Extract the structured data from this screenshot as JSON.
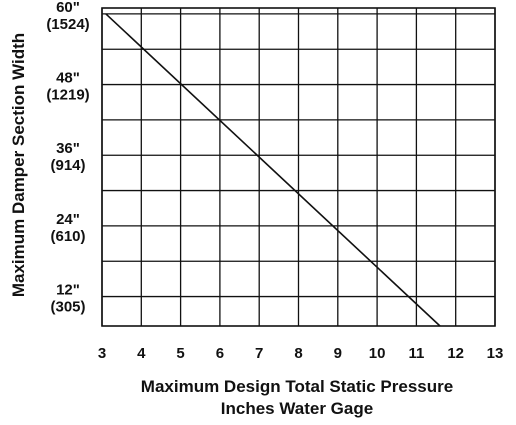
{
  "chart_data": {
    "type": "line",
    "xlabel": "Maximum Design Total Static Pressure",
    "xlabel_line2": "Inches Water Gage",
    "ylabel": "Maximum Damper Section Width",
    "xlim": [
      3,
      13
    ],
    "ylim": [
      7,
      61
    ],
    "x_ticks": [
      "3",
      "4",
      "5",
      "6",
      "7",
      "8",
      "9",
      "10",
      "11",
      "12",
      "13"
    ],
    "y_ticks": [
      {
        "value": 60,
        "line1": "60\"",
        "line2": "(1524)"
      },
      {
        "value": 48,
        "line1": "48\"",
        "line2": "(1219)"
      },
      {
        "value": 36,
        "line1": "36\"",
        "line2": "(914)"
      },
      {
        "value": 24,
        "line1": "24\"",
        "line2": "(610)"
      },
      {
        "value": 12,
        "line1": "12\"",
        "line2": "(305)"
      }
    ],
    "y_gridlines": [
      60,
      54,
      48,
      42,
      36,
      30,
      24,
      18,
      12
    ],
    "grid": true,
    "series": [
      {
        "points": [
          [
            3.1,
            60
          ],
          [
            11.6,
            7
          ]
        ],
        "color": "#111111"
      }
    ]
  }
}
